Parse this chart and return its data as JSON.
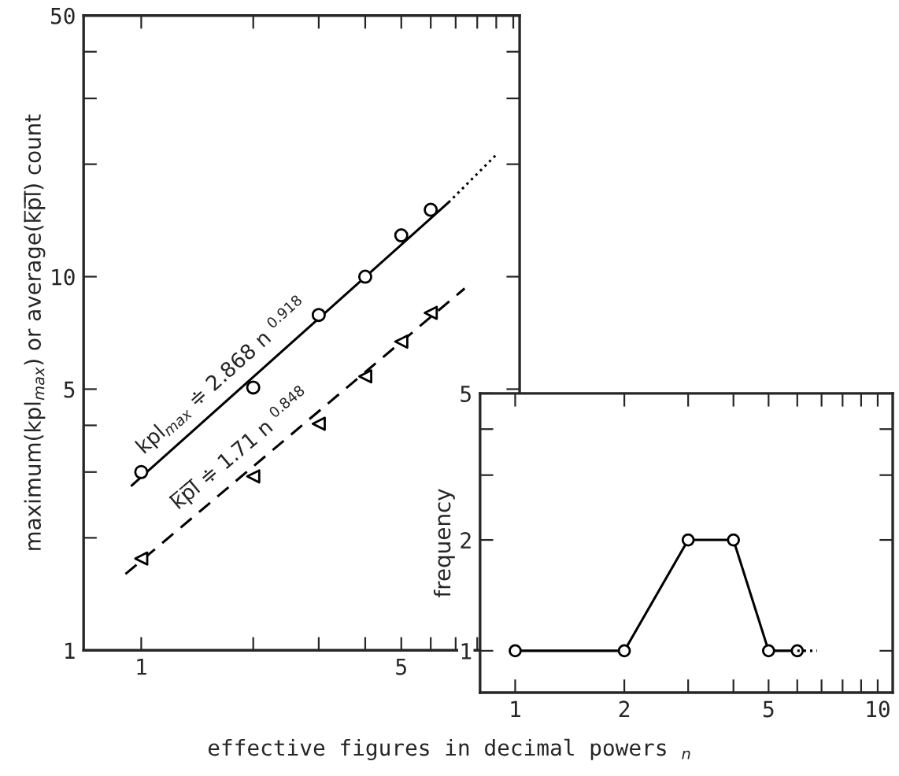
{
  "chart_data": [
    {
      "type": "line",
      "xlabel": "effective figures in decimal powers $_{n}$",
      "ylabel": "maximum(kpl$_{max}$) or average(k̅p̅l̅) count",
      "log": "xy",
      "grid": false,
      "legend": false,
      "xlim": [
        0.7,
        10.4
      ],
      "xticks": [
        1,
        {
          "value": 2,
          "label": null
        },
        {
          "value": 3,
          "label": null
        },
        {
          "value": 4,
          "label": null
        },
        5,
        {
          "value": 6,
          "label": null
        },
        {
          "value": 7,
          "label": null
        },
        {
          "value": 8,
          "label": null
        },
        {
          "value": 9,
          "label": null
        },
        {
          "value": 10,
          "label": null
        }
      ],
      "ylim": [
        1,
        50
      ],
      "yticks": [
        1,
        {
          "value": 2,
          "label": null
        },
        {
          "value": 3,
          "label": null
        },
        {
          "value": 4,
          "label": null
        },
        5,
        10,
        {
          "value": 20,
          "label": null
        },
        {
          "value": 30,
          "label": null
        },
        {
          "value": 40,
          "label": null
        },
        50
      ],
      "series": [
        {
          "type": "scatter",
          "marker": "circle",
          "color": "#000000",
          "x": [
            1,
            2,
            3,
            4,
            5,
            6
          ],
          "values": [
            3.0,
            5.05,
            7.9,
            10.0,
            12.9,
            15.1
          ]
        },
        {
          "type": "scatter",
          "marker": "triangle",
          "color": "#000000",
          "x": [
            1,
            2,
            3,
            4,
            5,
            6
          ],
          "values": [
            1.76,
            2.92,
            4.04,
            5.41,
            6.7,
            8.0
          ]
        },
        {
          "line_style": "solid",
          "color": "#000000",
          "x": [
            0.943,
            6.7
          ],
          "values": [
            2.76,
            15.8
          ]
        },
        {
          "line_style": "dotted",
          "color": "#000000",
          "x": [
            6.7,
            9.0
          ],
          "values": [
            15.8,
            21.2
          ]
        },
        {
          "line_style": "dashed",
          "color": "#000000",
          "x": [
            0.907,
            7.4
          ],
          "values": [
            1.6,
            9.3
          ]
        }
      ],
      "annotations": [
        "kpl$_{max}$ ≑ 2.868 n $^{0.918}$",
        "k̅p̅l̅ ≑ 1.71 n $^{0.848}$"
      ]
    },
    {
      "type": "line",
      "ylabel": "frequency",
      "log": "xy",
      "grid": false,
      "legend": false,
      "xlim": [
        0.8,
        11
      ],
      "xticks": [
        1,
        2,
        {
          "value": 3,
          "label": null
        },
        {
          "value": 4,
          "label": null
        },
        5,
        {
          "value": 6,
          "label": null
        },
        {
          "value": 7,
          "label": null
        },
        {
          "value": 8,
          "label": null
        },
        {
          "value": 9,
          "label": null
        },
        10
      ],
      "ylim": [
        0.77,
        5
      ],
      "yticks": [
        1,
        2,
        {
          "value": 3,
          "label": null
        },
        {
          "value": 4,
          "label": null
        },
        5
      ],
      "series": [
        {
          "marker": "circle",
          "line_style": "solid",
          "color": "#000000",
          "x": [
            1,
            2,
            3,
            4,
            5,
            6
          ],
          "values": [
            1,
            1,
            2,
            2,
            1,
            1
          ]
        },
        {
          "line_style": "dotted",
          "color": "#000000",
          "x": [
            6,
            6.8
          ],
          "values": [
            1,
            1
          ]
        }
      ]
    }
  ]
}
